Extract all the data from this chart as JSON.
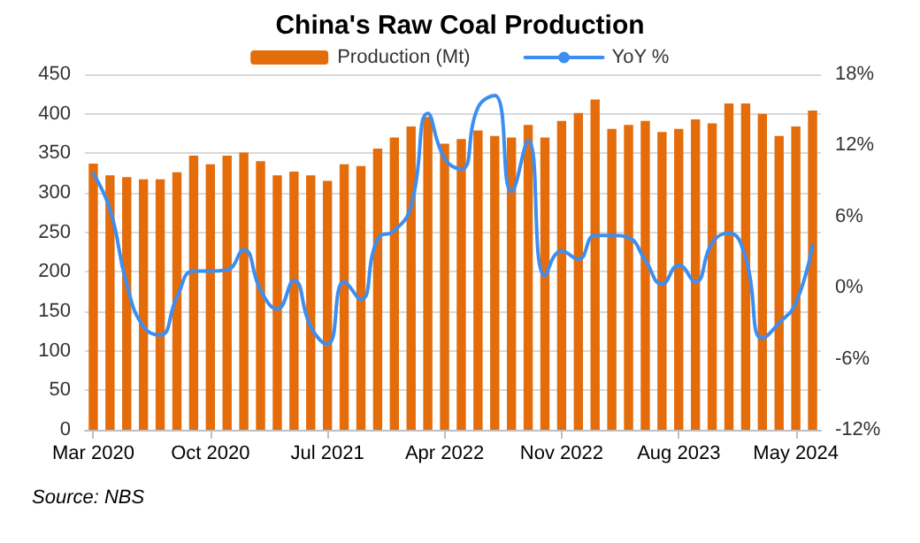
{
  "chart_data": {
    "type": "bar",
    "title": "China's Raw Coal Production",
    "categories": [
      "Mar 2020",
      null,
      null,
      null,
      null,
      null,
      null,
      "Oct 2020",
      null,
      null,
      null,
      null,
      null,
      null,
      "Jul 2021",
      null,
      null,
      null,
      null,
      null,
      null,
      "Apr 2022",
      null,
      null,
      null,
      null,
      null,
      null,
      "Nov 2022",
      null,
      null,
      null,
      null,
      null,
      null,
      "Aug 2023",
      null,
      null,
      null,
      null,
      null,
      null,
      "May 2024",
      null
    ],
    "series": [
      {
        "name": "Production (Mt)",
        "color": "#e46c0a",
        "values": [
          337,
          322,
          320,
          317,
          317,
          326,
          347,
          336,
          347,
          351,
          340,
          322,
          327,
          322,
          315,
          336,
          334,
          356,
          370,
          384,
          396,
          362,
          368,
          379,
          372,
          370,
          386,
          370,
          391,
          401,
          418,
          381,
          386,
          391,
          377,
          381,
          393,
          388,
          413,
          413,
          400,
          372,
          384,
          404
        ]
      },
      {
        "name": "YoY %",
        "type": "line",
        "axis": "y2",
        "color": "#3d8ef0",
        "values": [
          9.6,
          6.6,
          0.3,
          -3.3,
          -4.0,
          -0.8,
          1.4,
          1.4,
          1.5,
          3.2,
          -0.2,
          -1.8,
          0.6,
          -3.3,
          -4.8,
          0.5,
          -1.0,
          4.1,
          4.8,
          6.9,
          14.7,
          10.9,
          10.0,
          15.2,
          16.2,
          8.1,
          12.4,
          1.0,
          3.1,
          2.4,
          4.4,
          4.4,
          4.2,
          2.3,
          0.3,
          1.9,
          0.5,
          3.8,
          4.6,
          2.5,
          -4.3,
          -3.0,
          -1.3,
          3.6
        ]
      }
    ],
    "ylim": [
      0,
      450
    ],
    "yticks": [
      0,
      50,
      100,
      150,
      200,
      250,
      300,
      350,
      400,
      450
    ],
    "y2lim": [
      -12,
      18
    ],
    "y2ticks": [
      {
        "value": -12,
        "label": "-12%"
      },
      {
        "value": -6,
        "label": "-6%"
      },
      {
        "value": 0,
        "label": "0%"
      },
      {
        "value": 6,
        "label": "6%"
      },
      {
        "value": 12,
        "label": "12%"
      },
      {
        "value": 18,
        "label": "18%"
      }
    ],
    "grid": "y",
    "legend": "top",
    "marker": "none",
    "line_style": "solid",
    "annotations": [
      "Source: NBS"
    ]
  }
}
